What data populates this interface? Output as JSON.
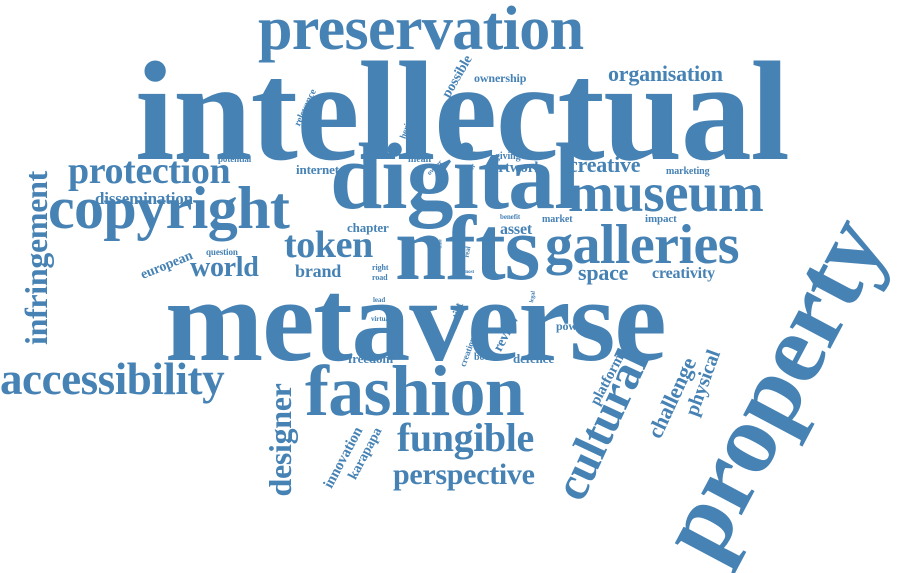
{
  "color": "#4682B4",
  "words": [
    {
      "key": "preservation",
      "text": "preservation",
      "weight": 0.55
    },
    {
      "key": "intellectual",
      "text": "intellectual",
      "weight": 1.0
    },
    {
      "key": "digital",
      "text": "digital",
      "weight": 0.7
    },
    {
      "key": "museum",
      "text": "museum",
      "weight": 0.5
    },
    {
      "key": "copyright",
      "text": "copyright",
      "weight": 0.55
    },
    {
      "key": "protection",
      "text": "protection",
      "weight": 0.4
    },
    {
      "key": "dissemination",
      "text": "dissemination",
      "weight": 0.2
    },
    {
      "key": "nfts",
      "text": "nfts",
      "weight": 0.75
    },
    {
      "key": "galleries",
      "text": "galleries",
      "weight": 0.5
    },
    {
      "key": "token",
      "text": "token",
      "weight": 0.4
    },
    {
      "key": "world",
      "text": "world",
      "weight": 0.3
    },
    {
      "key": "brand",
      "text": "brand",
      "weight": 0.2
    },
    {
      "key": "metaverse",
      "text": "metaverse",
      "weight": 1.0
    },
    {
      "key": "property",
      "text": "property",
      "weight": 0.85
    },
    {
      "key": "fashion",
      "text": "fashion",
      "weight": 0.75
    },
    {
      "key": "accessibility",
      "text": "accessibility",
      "weight": 0.45
    },
    {
      "key": "infringement",
      "text": "infringement",
      "weight": 0.35
    },
    {
      "key": "cultural",
      "text": "cultural",
      "weight": 0.5
    },
    {
      "key": "fungible",
      "text": "fungible",
      "weight": 0.4
    },
    {
      "key": "perspective",
      "text": "perspective",
      "weight": 0.3
    },
    {
      "key": "designer",
      "text": "designer",
      "weight": 0.35
    },
    {
      "key": "creative",
      "text": "creative",
      "weight": 0.25
    },
    {
      "key": "organisation",
      "text": "organisation",
      "weight": 0.25
    },
    {
      "key": "space",
      "text": "space",
      "weight": 0.25
    },
    {
      "key": "creativity",
      "text": "creativity",
      "weight": 0.2
    },
    {
      "key": "challenge",
      "text": "challenge",
      "weight": 0.25
    },
    {
      "key": "physical",
      "text": "physical",
      "weight": 0.25
    },
    {
      "key": "platform",
      "text": "platform",
      "weight": 0.2
    },
    {
      "key": "innovation",
      "text": "innovation",
      "weight": 0.2
    },
    {
      "key": "karapapa",
      "text": "karapapa",
      "weight": 0.2
    },
    {
      "key": "european",
      "text": "european",
      "weight": 0.2
    },
    {
      "key": "possible",
      "text": "possible",
      "weight": 0.2
    },
    {
      "key": "ownership",
      "text": "ownership",
      "weight": 0.15
    },
    {
      "key": "relevance",
      "text": "relevance",
      "weight": 0.1
    },
    {
      "key": "heritage",
      "text": "heritage",
      "weight": 0.1
    },
    {
      "key": "potential",
      "text": "potential",
      "weight": 0.1
    },
    {
      "key": "internet",
      "text": "internet",
      "weight": 0.15
    },
    {
      "key": "mean",
      "text": "mean",
      "weight": 0.1
    },
    {
      "key": "owner",
      "text": "owner",
      "weight": 0.08
    },
    {
      "key": "sector",
      "text": "sector",
      "weight": 0.08
    },
    {
      "key": "giving",
      "text": "giving",
      "weight": 0.1
    },
    {
      "key": "artwork",
      "text": "artwork",
      "weight": 0.15
    },
    {
      "key": "marketing",
      "text": "marketing",
      "weight": 0.1
    },
    {
      "key": "chapter",
      "text": "chapter",
      "weight": 0.15
    },
    {
      "key": "question",
      "text": "question",
      "weight": 0.1
    },
    {
      "key": "benefit",
      "text": "benefit",
      "weight": 0.08
    },
    {
      "key": "market",
      "text": "market",
      "weight": 0.1
    },
    {
      "key": "impact",
      "text": "impact",
      "weight": 0.1
    },
    {
      "key": "asset",
      "text": "asset",
      "weight": 0.15
    },
    {
      "key": "time",
      "text": "time",
      "weight": 0.05
    },
    {
      "key": "user",
      "text": "user",
      "weight": 0.05
    },
    {
      "key": "real",
      "text": "real",
      "weight": 0.08
    },
    {
      "key": "novel",
      "text": "novel",
      "weight": 0.05
    },
    {
      "key": "most",
      "text": "most",
      "weight": 0.05
    },
    {
      "key": "right",
      "text": "right",
      "weight": 0.08
    },
    {
      "key": "road",
      "text": "road",
      "weight": 0.08
    },
    {
      "key": "lead",
      "text": "lead",
      "weight": 0.08
    },
    {
      "key": "virtual",
      "text": "virtual",
      "weight": 0.08
    },
    {
      "key": "artist",
      "text": "artist",
      "weight": 0.1
    },
    {
      "key": "legal",
      "text": "legal",
      "weight": 0.05
    },
    {
      "key": "review",
      "text": "review",
      "weight": 0.15
    },
    {
      "key": "power",
      "text": "power",
      "weight": 0.12
    },
    {
      "key": "creation",
      "text": "creation",
      "weight": 0.1
    },
    {
      "key": "book",
      "text": "book",
      "weight": 0.1
    },
    {
      "key": "freedom",
      "text": "freedom",
      "weight": 0.15
    },
    {
      "key": "defence",
      "text": "defence",
      "weight": 0.15
    }
  ]
}
